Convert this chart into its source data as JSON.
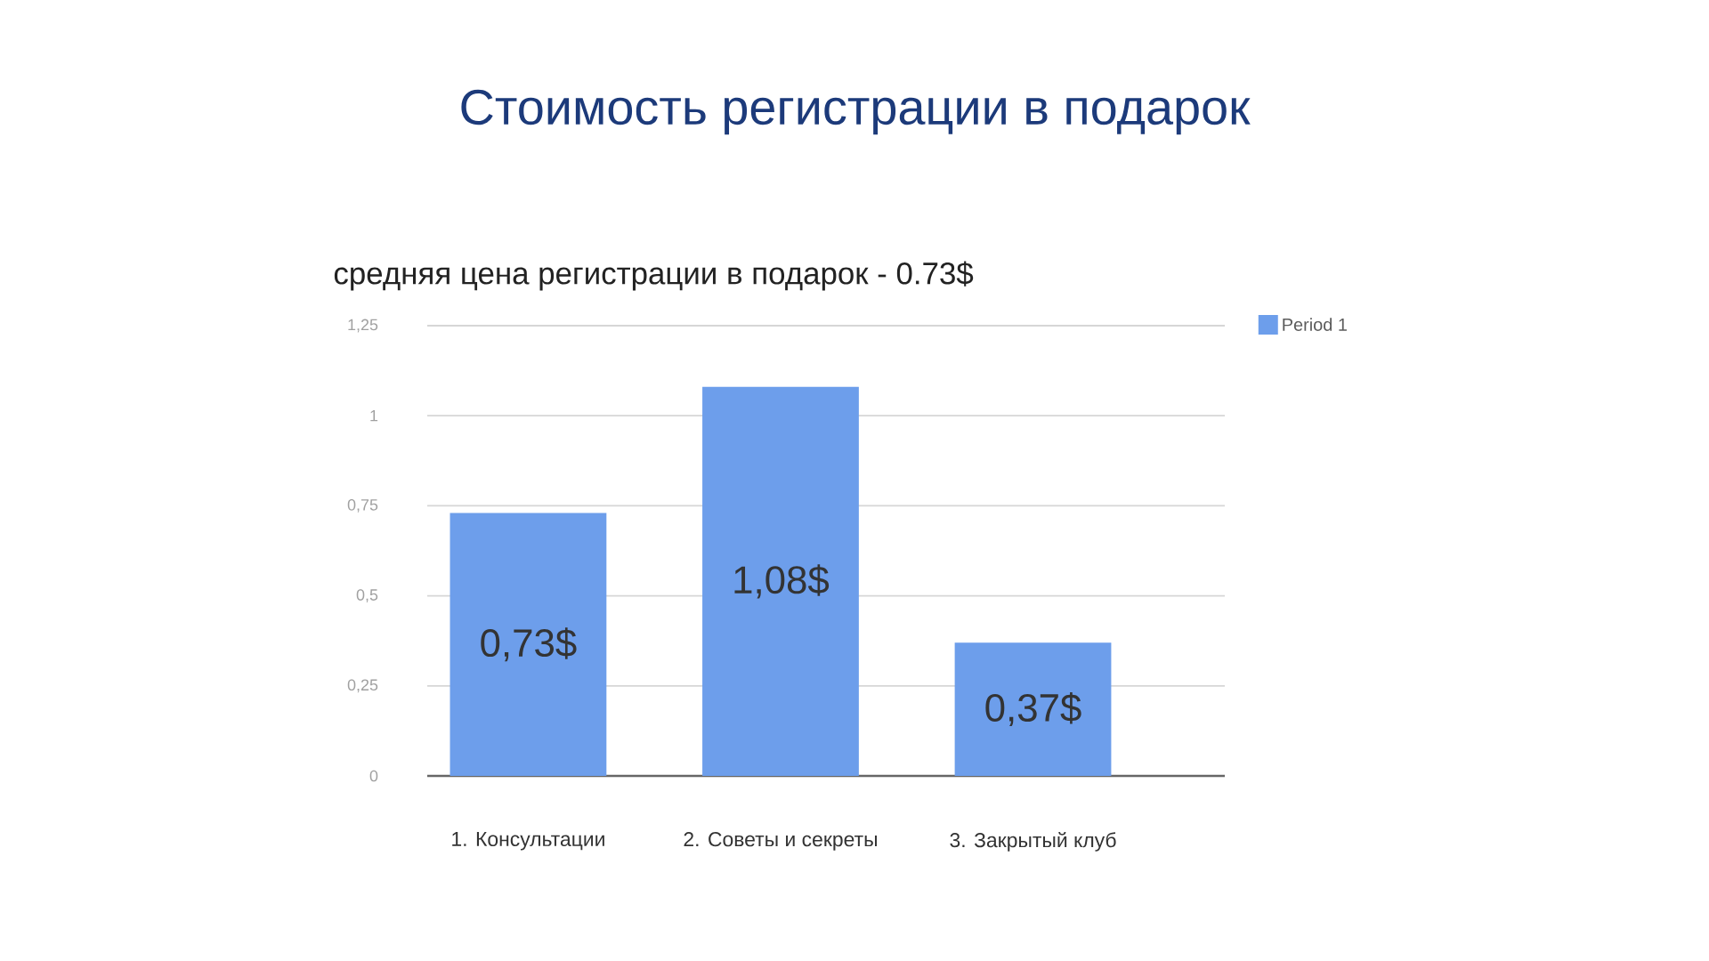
{
  "chart_data": {
    "type": "bar",
    "title": "Стоимость регистрации в подарок",
    "subtitle": "средняя цена регистрации в подарок - 0.73$",
    "categories": [
      "1. Консультации",
      "2. Советы и секреты",
      "3. Закрытый клуб"
    ],
    "series": [
      {
        "name": "Period 1",
        "color": "#6d9eeb",
        "values": [
          0.73,
          1.08,
          0.37
        ],
        "value_labels": [
          "0,73$",
          "1,08$",
          "0,37$"
        ]
      }
    ],
    "ylim": [
      0,
      1.25
    ],
    "yticks": [
      0,
      {
        "value": 0.25,
        "label": "0,25"
      },
      {
        "value": 0.5,
        "label": "0,5"
      },
      {
        "value": 0.75,
        "label": "0,75"
      },
      1,
      {
        "value": 1.25,
        "label": "1,25"
      }
    ],
    "grid": "y",
    "legend": "top right"
  }
}
